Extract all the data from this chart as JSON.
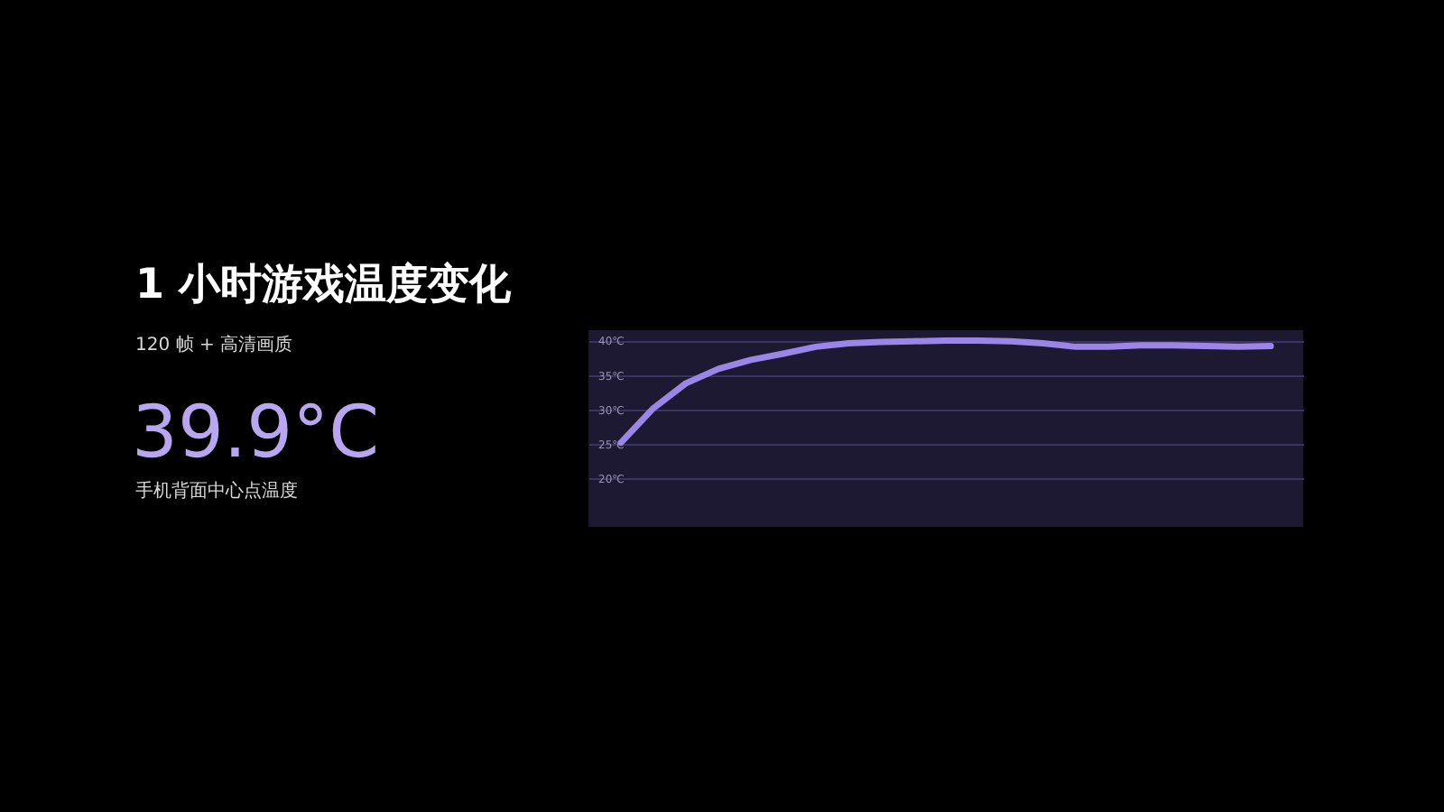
{
  "chart_data": {
    "type": "line",
    "title": "1 小时游戏温度变化",
    "subtitle": "120 帧 + 高清画质",
    "annotations": [
      "39.9°C",
      "手机背面中心点温度"
    ],
    "categories": [
      null,
      null,
      null,
      null,
      null,
      null,
      null,
      null,
      null,
      null,
      null,
      null,
      null,
      null,
      null,
      null,
      null,
      null,
      null,
      null,
      null
    ],
    "series": [
      {
        "color": "#9a86e6",
        "values": [
          25.2,
          30.2,
          33.8,
          35.9,
          37.2,
          38.1,
          39.1,
          39.6,
          39.8,
          39.9,
          40.0,
          40.0,
          39.9,
          39.6,
          39.1,
          39.1,
          39.3,
          39.3,
          39.2,
          39.1,
          39.2
        ]
      }
    ],
    "ylim": [
      13,
      41.5
    ],
    "yticks": [
      {
        "value": 20,
        "label": "20℃"
      },
      {
        "value": 25,
        "label": "25℃"
      },
      {
        "value": 30,
        "label": "30℃"
      },
      {
        "value": 35,
        "label": "35℃"
      },
      {
        "value": 40,
        "label": "40℃"
      }
    ],
    "grid": "y",
    "tick_labels": "y",
    "marker": "none",
    "line_style": "solid"
  }
}
